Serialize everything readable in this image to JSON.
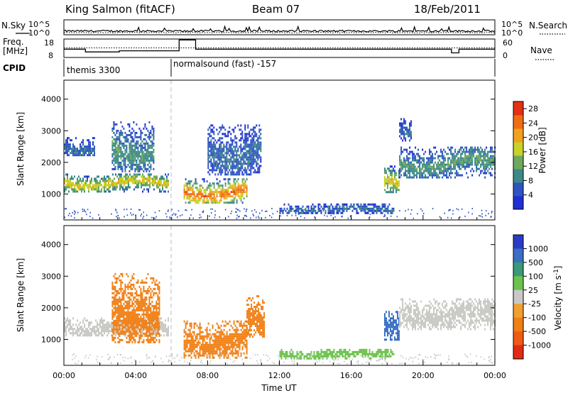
{
  "header": {
    "station": "King Salmon (fitACF)",
    "beam": "Beam 07",
    "date": "18/Feb/2011"
  },
  "colors": {
    "background": "#ffffff",
    "axis": "#000000"
  },
  "chart_data": [
    {
      "type": "line",
      "panel": "noise",
      "left_label": "N.Sky",
      "right_label": "N.Search",
      "left_ticks": [
        "10^5",
        "10^0"
      ],
      "right_ticks": [
        "10^5",
        "10^0"
      ],
      "series": [
        {
          "name": "N.Sky",
          "style": "solid"
        },
        {
          "name": "N.Search",
          "style": "dotted"
        }
      ]
    },
    {
      "type": "line",
      "panel": "frequency",
      "left_label": "Freq. [MHz]",
      "right_label": "Nave",
      "left_ticks": [
        "18",
        "8"
      ],
      "right_ticks": [
        "60",
        "0"
      ],
      "x": [
        "00:00",
        "01:10",
        "01:12",
        "03:00",
        "03:05",
        "06:15",
        "06:25",
        "07:10",
        "07:20",
        "21:20",
        "21:35",
        "21:45",
        "22:00",
        "24:00"
      ],
      "freq_mhz": [
        12.5,
        12.5,
        11.0,
        11.0,
        11.6,
        11.6,
        17.5,
        17.5,
        12.5,
        12.5,
        10.5,
        10.5,
        12.5,
        12.5
      ],
      "series": [
        {
          "name": "Freq.",
          "style": "solid"
        },
        {
          "name": "Nave",
          "style": "dotted"
        }
      ]
    },
    {
      "type": "table",
      "panel": "cpid",
      "label": "CPID",
      "segments": [
        {
          "start": "00:00",
          "end": "06:00",
          "text": "themis 3300"
        },
        {
          "start": "06:00",
          "end": "24:00",
          "text": "normalsound (fast) -157"
        }
      ]
    },
    {
      "type": "heatmap",
      "panel": "power",
      "ylabel": "Slant Range [km]",
      "yticks": [
        1000,
        2000,
        3000,
        4000
      ],
      "ylim": [
        180,
        4600
      ],
      "xlim": [
        "00:00",
        "24:00"
      ],
      "colorbar_label": "Power [dB]",
      "colorbar_ticks": [
        4,
        8,
        12,
        16,
        20,
        24,
        28
      ],
      "colorbar_range": [
        0,
        30
      ],
      "features": [
        {
          "t_start": "00:00",
          "t_end": "05:50",
          "range_km": [
            1100,
            1650
          ],
          "value": 18
        },
        {
          "t_start": "00:00",
          "t_end": "01:40",
          "range_km": [
            2200,
            2800
          ],
          "value": 6
        },
        {
          "t_start": "02:40",
          "t_end": "05:00",
          "range_km": [
            1700,
            3300
          ],
          "value": 9
        },
        {
          "t_start": "06:40",
          "t_end": "10:10",
          "range_km": [
            700,
            1500
          ],
          "value": 24
        },
        {
          "t_start": "08:00",
          "t_end": "11:00",
          "range_km": [
            1600,
            3200
          ],
          "value": 6
        },
        {
          "t_start": "12:00",
          "t_end": "18:20",
          "range_km": [
            400,
            700
          ],
          "value": 6
        },
        {
          "t_start": "17:50",
          "t_end": "18:40",
          "range_km": [
            1050,
            1900
          ],
          "value": 18
        },
        {
          "t_start": "18:40",
          "t_end": "24:00",
          "range_km": [
            1500,
            2500
          ],
          "value": 10
        },
        {
          "t_start": "18:40",
          "t_end": "19:20",
          "range_km": [
            2700,
            3400
          ],
          "value": 6
        }
      ]
    },
    {
      "type": "heatmap",
      "panel": "velocity",
      "ylabel": "Slant Range [km]",
      "yticks": [
        1000,
        2000,
        3000,
        4000
      ],
      "ylim": [
        180,
        4600
      ],
      "xlim": [
        "00:00",
        "24:00"
      ],
      "xticks": [
        "00:00",
        "04:00",
        "08:00",
        "12:00",
        "16:00",
        "20:00",
        "00:00"
      ],
      "xlabel": "Time UT",
      "colorbar_label": "Velocity [m s^-1]",
      "colorbar_ticks": [
        "1000",
        "500",
        "100",
        "25",
        "-25",
        "-100",
        "-500",
        "-1000"
      ],
      "features": [
        {
          "t_start": "00:00",
          "t_end": "05:50",
          "range_km": [
            1100,
            1700
          ],
          "value": "ground scatter"
        },
        {
          "t_start": "02:40",
          "t_end": "05:20",
          "range_km": [
            900,
            3100
          ],
          "value": -150
        },
        {
          "t_start": "06:40",
          "t_end": "10:10",
          "range_km": [
            400,
            1600
          ],
          "value": -200
        },
        {
          "t_start": "10:10",
          "t_end": "11:10",
          "range_km": [
            1100,
            2400
          ],
          "value": -100
        },
        {
          "t_start": "12:00",
          "t_end": "18:20",
          "range_km": [
            400,
            700
          ],
          "value": 100
        },
        {
          "t_start": "17:50",
          "t_end": "18:40",
          "range_km": [
            1000,
            1900
          ],
          "value": 150
        },
        {
          "t_start": "18:40",
          "t_end": "24:00",
          "range_km": [
            1300,
            2300
          ],
          "value": "ground scatter"
        }
      ]
    }
  ]
}
